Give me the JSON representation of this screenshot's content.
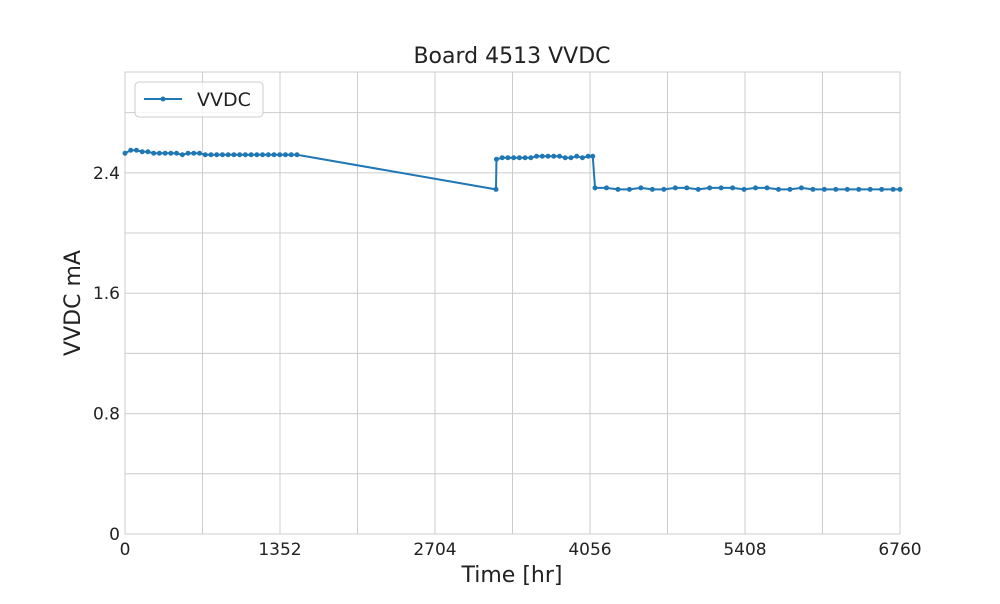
{
  "chart_data": {
    "type": "line",
    "title": "Board 4513 VVDC",
    "xlabel": "Time [hr]",
    "ylabel": "VVDC mA",
    "x": [
      0,
      50,
      100,
      150,
      200,
      250,
      300,
      350,
      400,
      450,
      500,
      550,
      600,
      650,
      700,
      750,
      800,
      850,
      900,
      950,
      1000,
      1050,
      1100,
      1150,
      1200,
      1250,
      1300,
      1350,
      1400,
      1450,
      1500,
      3236,
      3240,
      3290,
      3340,
      3390,
      3440,
      3490,
      3540,
      3590,
      3640,
      3690,
      3740,
      3790,
      3840,
      3890,
      3940,
      3990,
      4040,
      4080,
      4100,
      4200,
      4300,
      4400,
      4500,
      4600,
      4700,
      4800,
      4900,
      5000,
      5100,
      5200,
      5300,
      5400,
      5500,
      5600,
      5700,
      5800,
      5900,
      6000,
      6100,
      6200,
      6300,
      6400,
      6500,
      6600,
      6700,
      6760
    ],
    "series": [
      {
        "name": "VVDC",
        "color": "#1f77b4",
        "values": [
          2.53,
          2.55,
          2.55,
          2.54,
          2.54,
          2.53,
          2.53,
          2.53,
          2.53,
          2.53,
          2.52,
          2.53,
          2.53,
          2.53,
          2.52,
          2.52,
          2.52,
          2.52,
          2.52,
          2.52,
          2.52,
          2.52,
          2.52,
          2.52,
          2.52,
          2.52,
          2.52,
          2.52,
          2.52,
          2.52,
          2.52,
          2.29,
          2.49,
          2.5,
          2.5,
          2.5,
          2.5,
          2.5,
          2.5,
          2.51,
          2.51,
          2.51,
          2.51,
          2.51,
          2.5,
          2.5,
          2.51,
          2.5,
          2.51,
          2.51,
          2.3,
          2.3,
          2.29,
          2.29,
          2.3,
          2.29,
          2.29,
          2.3,
          2.3,
          2.29,
          2.3,
          2.3,
          2.3,
          2.29,
          2.3,
          2.3,
          2.29,
          2.29,
          2.3,
          2.29,
          2.29,
          2.29,
          2.29,
          2.29,
          2.29,
          2.29,
          2.29,
          2.29
        ]
      }
    ],
    "xlim": [
      0,
      6760
    ],
    "xticks": [
      0,
      1352,
      2704,
      4056,
      5408,
      6760
    ],
    "xminor": [
      676,
      2028,
      3380,
      4732,
      6084
    ],
    "ylim": [
      0,
      3.07
    ],
    "yticks": [
      0.0,
      0.8,
      1.6,
      2.4
    ],
    "yminor": [
      0.4,
      1.2,
      2.0,
      2.8
    ],
    "grid": true,
    "legend": "upper left"
  }
}
